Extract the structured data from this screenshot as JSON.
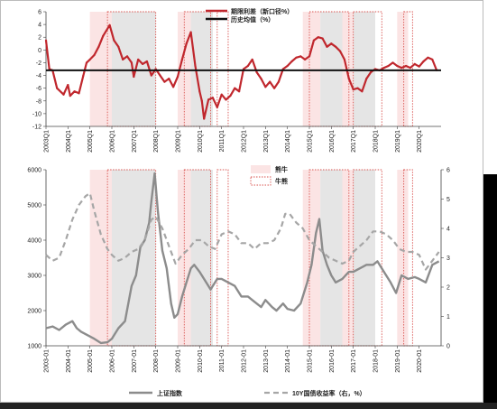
{
  "chart_data": [
    {
      "type": "line",
      "title": "",
      "ylim": [
        -12,
        6
      ],
      "yticks": [
        6,
        4,
        2,
        0,
        -2,
        -4,
        -6,
        -8,
        -10,
        -12
      ],
      "xrange": [
        2003.0,
        2021.0
      ],
      "xtick_labels": [
        "2003Q1",
        "2004Q1",
        "2005Q1",
        "2006Q1",
        "2007Q1",
        "2008Q1",
        "2009Q1",
        "2010Q1",
        "2011Q1",
        "2012Q1",
        "2013Q1",
        "2014Q1",
        "2015Q1",
        "2016Q1",
        "2017Q1",
        "2018Q1",
        "2019Q1",
        "2020Q1"
      ],
      "grid": false,
      "legend_position": "top-center",
      "series": [
        {
          "name": "期限利差（新口径%）",
          "color": "#c0272d",
          "x": [
            2003.0,
            2003.15,
            2003.3,
            2003.5,
            2003.8,
            2004.0,
            2004.1,
            2004.3,
            2004.5,
            2004.7,
            2004.85,
            2005.0,
            2005.2,
            2005.4,
            2005.6,
            2005.9,
            2006.1,
            2006.3,
            2006.5,
            2006.7,
            2006.9,
            2007.0,
            2007.2,
            2007.4,
            2007.6,
            2007.8,
            2008.0,
            2008.2,
            2008.4,
            2008.6,
            2008.8,
            2009.0,
            2009.2,
            2009.4,
            2009.6,
            2009.8,
            2010.0,
            2010.1,
            2010.2,
            2010.4,
            2010.6,
            2010.8,
            2011.0,
            2011.2,
            2011.4,
            2011.6,
            2011.8,
            2012.0,
            2012.2,
            2012.4,
            2012.6,
            2012.8,
            2013.0,
            2013.2,
            2013.4,
            2013.6,
            2013.8,
            2014.0,
            2014.2,
            2014.4,
            2014.6,
            2014.8,
            2015.0,
            2015.2,
            2015.4,
            2015.6,
            2015.8,
            2016.0,
            2016.2,
            2016.4,
            2016.6,
            2016.8,
            2017.0,
            2017.2,
            2017.4,
            2017.6,
            2017.8,
            2018.0,
            2018.2,
            2018.4,
            2018.6,
            2018.8,
            2019.0,
            2019.2,
            2019.4,
            2019.6,
            2019.8,
            2020.0,
            2020.2,
            2020.4,
            2020.6,
            2020.8
          ],
          "y": [
            1.5,
            -3.0,
            -3.2,
            -6.0,
            -7.0,
            -5.5,
            -7.2,
            -6.5,
            -6.8,
            -4.0,
            -2.0,
            -1.5,
            -0.8,
            0.5,
            2.2,
            3.9,
            1.5,
            0.5,
            -1.5,
            -1.0,
            -2.0,
            -4.2,
            -1.5,
            -2.2,
            -1.8,
            -4.0,
            -3.0,
            -4.0,
            -5.0,
            -4.5,
            -5.8,
            -4.2,
            -1.5,
            1.0,
            2.8,
            -2.5,
            -6.5,
            -8.0,
            -10.8,
            -7.8,
            -7.5,
            -9.0,
            -7.0,
            -7.8,
            -7.2,
            -6.0,
            -6.5,
            -3.0,
            -2.5,
            -1.5,
            -3.5,
            -4.5,
            -5.8,
            -5.0,
            -6.0,
            -5.0,
            -3.0,
            -2.5,
            -1.8,
            -1.2,
            -1.0,
            -1.5,
            -1.0,
            1.5,
            2.0,
            1.8,
            0.5,
            1.0,
            0.5,
            -0.2,
            -1.5,
            -4.5,
            -6.2,
            -6.0,
            -6.5,
            -4.5,
            -3.5,
            -3.0,
            -3.2,
            -2.8,
            -2.5,
            -2.0,
            -2.5,
            -2.8,
            -2.5,
            -2.8,
            -2.2,
            -2.6,
            -1.8,
            -1.2,
            -1.5,
            -3.2
          ]
        },
        {
          "name": "历史均值（%）",
          "color": "#111111",
          "x": [
            2003.0,
            2021.0
          ],
          "y": [
            -3.2,
            -3.2
          ]
        }
      ],
      "regions": {
        "熊牛": [
          [
            2005.0,
            2006.0
          ],
          [
            2009.0,
            2009.6
          ],
          [
            2014.7,
            2015.5
          ],
          [
            2016.5,
            2017.0
          ],
          [
            2019.0,
            2019.5
          ]
        ],
        "熊牛_gray": [
          [
            2006.0,
            2008.0
          ],
          [
            2009.6,
            2010.6
          ],
          [
            2015.5,
            2016.5
          ],
          [
            2017.0,
            2018.0
          ]
        ],
        "牛熊_box": [
          [
            2005.8,
            2008.0
          ],
          [
            2009.3,
            2010.5
          ],
          [
            2010.8,
            2011.3
          ],
          [
            2015.0,
            2016.8
          ],
          [
            2017.0,
            2018.3
          ],
          [
            2019.3,
            2019.7
          ]
        ]
      }
    },
    {
      "type": "line",
      "title": "",
      "ylim": [
        1000,
        6000
      ],
      "y2lim": [
        0,
        6
      ],
      "yticks": [
        6000,
        5000,
        4000,
        3000,
        2000,
        1000
      ],
      "y2ticks": [
        6,
        5,
        4,
        3,
        2,
        1,
        0
      ],
      "xrange": [
        2003.0,
        2021.0
      ],
      "xtick_labels": [
        "2003-01",
        "2004-01",
        "2005-01",
        "2006-01",
        "2007-01",
        "2008-01",
        "2009-01",
        "2010-01",
        "2011-01",
        "2012-01",
        "2013-01",
        "2014-01",
        "2015-01",
        "2016-01",
        "2017-01",
        "2018-01",
        "2019-01",
        "2020-01"
      ],
      "grid": false,
      "legend_position": "bottom",
      "series": [
        {
          "name": "上证指数",
          "axis": "left",
          "color": "#8c8c8c",
          "x": [
            2003.0,
            2003.3,
            2003.6,
            2003.9,
            2004.2,
            2004.4,
            2004.6,
            2004.9,
            2005.2,
            2005.5,
            2005.8,
            2006.0,
            2006.3,
            2006.6,
            2006.9,
            2007.1,
            2007.3,
            2007.5,
            2007.7,
            2007.8,
            2007.95,
            2008.1,
            2008.3,
            2008.5,
            2008.7,
            2008.85,
            2009.0,
            2009.2,
            2009.4,
            2009.6,
            2009.75,
            2010.0,
            2010.3,
            2010.5,
            2010.8,
            2011.0,
            2011.3,
            2011.6,
            2011.9,
            2012.2,
            2012.5,
            2012.8,
            2013.0,
            2013.3,
            2013.5,
            2013.8,
            2014.0,
            2014.3,
            2014.6,
            2014.9,
            2015.1,
            2015.3,
            2015.45,
            2015.6,
            2015.8,
            2016.0,
            2016.2,
            2016.5,
            2016.8,
            2017.0,
            2017.3,
            2017.6,
            2017.9,
            2018.1,
            2018.4,
            2018.7,
            2018.95,
            2019.2,
            2019.5,
            2019.8,
            2020.0,
            2020.3,
            2020.6,
            2020.9
          ],
          "y": [
            1500,
            1550,
            1450,
            1600,
            1700,
            1500,
            1400,
            1300,
            1200,
            1080,
            1100,
            1200,
            1500,
            1700,
            2700,
            3000,
            3800,
            4000,
            4500,
            5100,
            5900,
            4800,
            3700,
            3200,
            2200,
            1800,
            1900,
            2400,
            2800,
            3200,
            3300,
            3100,
            2800,
            2600,
            2900,
            2900,
            2800,
            2700,
            2400,
            2400,
            2250,
            2100,
            2300,
            2100,
            2000,
            2200,
            2050,
            2000,
            2200,
            2800,
            3300,
            4200,
            4600,
            3700,
            3300,
            3000,
            2800,
            2900,
            3100,
            3100,
            3200,
            3300,
            3300,
            3400,
            3100,
            2800,
            2500,
            3000,
            2900,
            2950,
            2900,
            2800,
            3300,
            3400
          ]
        },
        {
          "name": "10Y国债收益率（右，%）",
          "axis": "right",
          "color": "#a6a6a6",
          "dashed": true,
          "x": [
            2003.0,
            2003.3,
            2003.6,
            2003.9,
            2004.2,
            2004.5,
            2004.8,
            2005.0,
            2005.2,
            2005.5,
            2005.8,
            2006.0,
            2006.3,
            2006.6,
            2006.9,
            2007.2,
            2007.5,
            2007.8,
            2008.0,
            2008.3,
            2008.6,
            2008.9,
            2009.2,
            2009.5,
            2009.8,
            2010.1,
            2010.4,
            2010.7,
            2011.0,
            2011.3,
            2011.6,
            2011.9,
            2012.2,
            2012.5,
            2012.8,
            2013.1,
            2013.4,
            2013.7,
            2013.9,
            2014.1,
            2014.4,
            2014.7,
            2015.0,
            2015.3,
            2015.6,
            2015.9,
            2016.2,
            2016.5,
            2016.8,
            2017.0,
            2017.3,
            2017.6,
            2017.9,
            2018.2,
            2018.5,
            2018.8,
            2019.1,
            2019.4,
            2019.7,
            2020.0,
            2020.3,
            2020.6,
            2020.9
          ],
          "y": [
            3.1,
            2.9,
            3.0,
            3.6,
            4.3,
            4.8,
            5.1,
            5.2,
            4.6,
            3.8,
            3.3,
            3.1,
            2.9,
            3.0,
            3.2,
            3.3,
            3.6,
            4.3,
            4.4,
            4.0,
            3.4,
            2.8,
            3.1,
            3.3,
            3.6,
            3.6,
            3.4,
            3.3,
            3.8,
            3.9,
            3.8,
            3.5,
            3.5,
            3.3,
            3.5,
            3.5,
            3.6,
            4.0,
            4.5,
            4.5,
            4.2,
            4.0,
            3.6,
            3.4,
            3.2,
            3.0,
            2.9,
            2.8,
            2.9,
            3.2,
            3.4,
            3.6,
            3.9,
            3.9,
            3.8,
            3.6,
            3.3,
            3.2,
            3.2,
            3.1,
            2.6,
            2.9,
            3.2
          ]
        }
      ],
      "legend_regions": [
        "熊牛",
        "牛熊"
      ]
    }
  ]
}
